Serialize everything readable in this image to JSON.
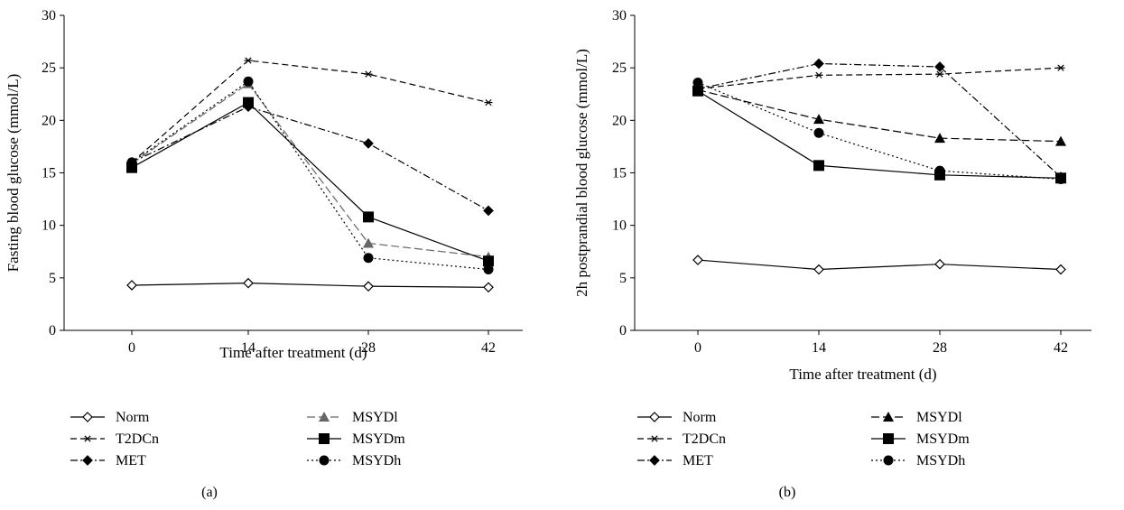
{
  "chart_data": [
    {
      "type": "line",
      "panel_label": "(a)",
      "xlabel": "Time after treatment (d)",
      "ylabel": "Fasting blood glucose (mmol/L)",
      "x": [
        0,
        14,
        28,
        42
      ],
      "ylim": [
        0,
        30
      ],
      "yticks": [
        0,
        5,
        10,
        15,
        20,
        25,
        30
      ],
      "legend_placement": "bottom",
      "series": [
        {
          "name": "Norm",
          "marker": "diamond-open",
          "dash": "solid",
          "values": [
            4.3,
            4.5,
            4.2,
            4.1
          ]
        },
        {
          "name": "T2DCn",
          "marker": "asterisk",
          "dash": "dashed",
          "values": [
            16.0,
            25.7,
            24.4,
            21.7
          ]
        },
        {
          "name": "MET",
          "marker": "diamond",
          "dash": "dashdot",
          "values": [
            16.0,
            21.3,
            17.8,
            11.4
          ]
        },
        {
          "name": "MSYDl",
          "marker": "triangle",
          "dash": "longdash",
          "color": "#666666",
          "values": [
            15.9,
            23.5,
            8.3,
            7.0
          ]
        },
        {
          "name": "MSYDm",
          "marker": "square",
          "dash": "solid",
          "values": [
            15.5,
            21.7,
            10.8,
            6.6
          ]
        },
        {
          "name": "MSYDh",
          "marker": "circle",
          "dash": "dotted",
          "values": [
            16.0,
            23.7,
            6.9,
            5.8
          ]
        }
      ]
    },
    {
      "type": "line",
      "panel_label": "(b)",
      "xlabel": "Time after treatment (d)",
      "ylabel": "2h postprandial blood glucose (mmol/L)",
      "x": [
        0,
        14,
        28,
        42
      ],
      "ylim": [
        0,
        30
      ],
      "yticks": [
        0,
        5,
        10,
        15,
        20,
        25,
        30
      ],
      "legend_placement": "bottom",
      "series": [
        {
          "name": "Norm",
          "marker": "diamond-open",
          "dash": "solid",
          "values": [
            6.7,
            5.8,
            6.3,
            5.8
          ]
        },
        {
          "name": "T2DCn",
          "marker": "asterisk",
          "dash": "dashed",
          "values": [
            23.0,
            24.3,
            24.4,
            25.0
          ]
        },
        {
          "name": "MET",
          "marker": "diamond",
          "dash": "dashdot",
          "values": [
            23.0,
            25.4,
            25.1,
            14.6
          ]
        },
        {
          "name": "MSYDl",
          "marker": "triangle",
          "dash": "longdash",
          "values": [
            22.9,
            20.1,
            18.3,
            18.0
          ]
        },
        {
          "name": "MSYDm",
          "marker": "square",
          "dash": "solid",
          "values": [
            22.8,
            15.7,
            14.8,
            14.5
          ]
        },
        {
          "name": "MSYDh",
          "marker": "circle",
          "dash": "dotted",
          "values": [
            23.6,
            18.8,
            15.2,
            14.4
          ]
        }
      ]
    }
  ]
}
